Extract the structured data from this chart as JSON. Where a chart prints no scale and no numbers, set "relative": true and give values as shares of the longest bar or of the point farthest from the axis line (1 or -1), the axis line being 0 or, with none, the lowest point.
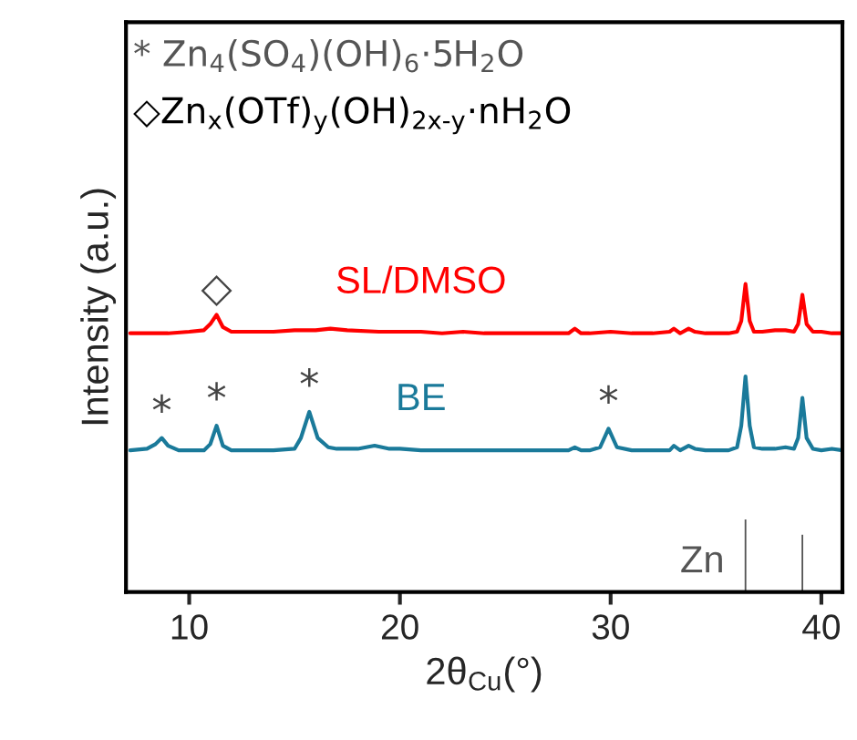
{
  "chart_data": {
    "type": "line",
    "relative": true,
    "xlabel": "2θ$_{Cu}$(°)",
    "ylabel": "Intensity (a.u.)",
    "xlim": [
      7,
      41
    ],
    "xticks": [
      10,
      20,
      30,
      40
    ],
    "grid": false,
    "legend": false,
    "series": [
      {
        "name": "SL/DMSO",
        "color": "#ff0000",
        "x": [
          7.2,
          8,
          9,
          10,
          10.7,
          11.0,
          11.3,
          11.6,
          12,
          13,
          14,
          15,
          16,
          16.7,
          17.5,
          19,
          20,
          21,
          22,
          23,
          24,
          25,
          26,
          27,
          28,
          28.3,
          28.6,
          29,
          30,
          31,
          32,
          32.8,
          33.0,
          33.3,
          33.7,
          34.0,
          34.5,
          35,
          35.6,
          36.0,
          36.2,
          36.4,
          36.6,
          36.8,
          37.2,
          37.8,
          38.3,
          38.7,
          38.9,
          39.1,
          39.3,
          39.6,
          40,
          40.5,
          41
        ],
        "values": [
          0.84,
          0.84,
          0.84,
          0.845,
          0.85,
          0.87,
          0.9,
          0.86,
          0.845,
          0.845,
          0.845,
          0.85,
          0.85,
          0.855,
          0.85,
          0.845,
          0.845,
          0.845,
          0.84,
          0.845,
          0.84,
          0.84,
          0.84,
          0.84,
          0.84,
          0.855,
          0.84,
          0.84,
          0.845,
          0.84,
          0.84,
          0.845,
          0.855,
          0.84,
          0.855,
          0.845,
          0.84,
          0.84,
          0.84,
          0.845,
          0.88,
          1.0,
          0.88,
          0.845,
          0.845,
          0.85,
          0.85,
          0.845,
          0.87,
          0.965,
          0.87,
          0.845,
          0.845,
          0.84,
          0.84
        ]
      },
      {
        "name": "BE",
        "color": "#1a7a9a",
        "x": [
          7.2,
          8,
          8.4,
          8.7,
          9.0,
          9.5,
          10,
          10.7,
          11.0,
          11.3,
          11.6,
          12,
          13,
          14,
          15,
          15.3,
          15.7,
          16.1,
          16.6,
          17,
          18,
          18.8,
          19.5,
          20,
          21,
          22,
          23,
          24,
          25,
          26,
          27,
          28,
          28.3,
          28.6,
          29,
          29.5,
          29.9,
          30.3,
          31,
          32,
          32.8,
          33.0,
          33.3,
          33.7,
          34.0,
          34.5,
          35,
          35.6,
          36.0,
          36.2,
          36.4,
          36.6,
          36.8,
          37.2,
          37.8,
          38.3,
          38.7,
          38.9,
          39.1,
          39.3,
          39.6,
          40,
          40.5,
          41
        ],
        "values": [
          0.46,
          0.465,
          0.48,
          0.5,
          0.475,
          0.46,
          0.46,
          0.46,
          0.48,
          0.54,
          0.475,
          0.46,
          0.46,
          0.46,
          0.465,
          0.5,
          0.585,
          0.5,
          0.47,
          0.465,
          0.465,
          0.475,
          0.465,
          0.465,
          0.46,
          0.46,
          0.46,
          0.46,
          0.46,
          0.46,
          0.46,
          0.46,
          0.47,
          0.46,
          0.46,
          0.47,
          0.53,
          0.47,
          0.46,
          0.46,
          0.46,
          0.475,
          0.46,
          0.475,
          0.465,
          0.46,
          0.46,
          0.46,
          0.47,
          0.54,
          0.7,
          0.54,
          0.47,
          0.465,
          0.465,
          0.47,
          0.465,
          0.5,
          0.63,
          0.5,
          0.465,
          0.46,
          0.465,
          0.46
        ]
      },
      {
        "name": "Zn",
        "type": "bar",
        "color": "#555555",
        "x": [
          36.4,
          39.1
        ],
        "values": [
          0.24,
          0.19
        ]
      }
    ],
    "annotations": [
      "* Zn$_{4}$(SO$_{4}$)(OH)$_{6}$·5H$_{2}$O",
      "◇Zn$_{x}$(OTf)$_{y}$(OH)$_{2x-y}$·nH$_{2}$O",
      {
        "text": "◇",
        "x": 11.3,
        "y": 0.9
      },
      {
        "text": "*",
        "x": 8.7,
        "y": 0.5
      },
      {
        "text": "*",
        "x": 11.3,
        "y": 0.54
      },
      {
        "text": "*",
        "x": 15.7,
        "y": 0.585
      },
      {
        "text": "*",
        "x": 29.9,
        "y": 0.53
      }
    ]
  }
}
